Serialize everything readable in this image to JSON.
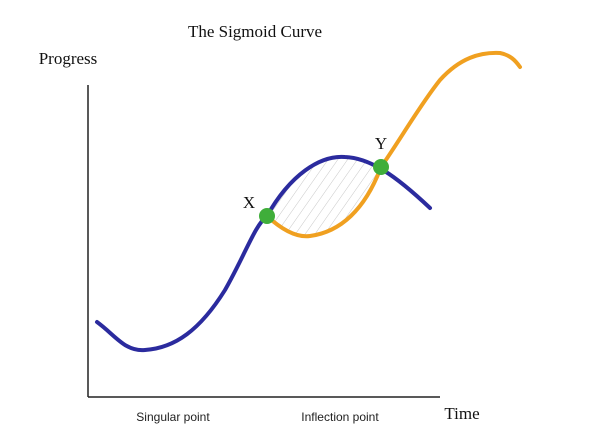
{
  "title": "The Sigmoid Curve",
  "axes": {
    "y_label": "Progress",
    "x_label": "Time"
  },
  "points": [
    {
      "label": "X"
    },
    {
      "label": "Y"
    }
  ],
  "annotations": [
    {
      "label": "Singular point"
    },
    {
      "label": "Inflection point"
    }
  ]
}
